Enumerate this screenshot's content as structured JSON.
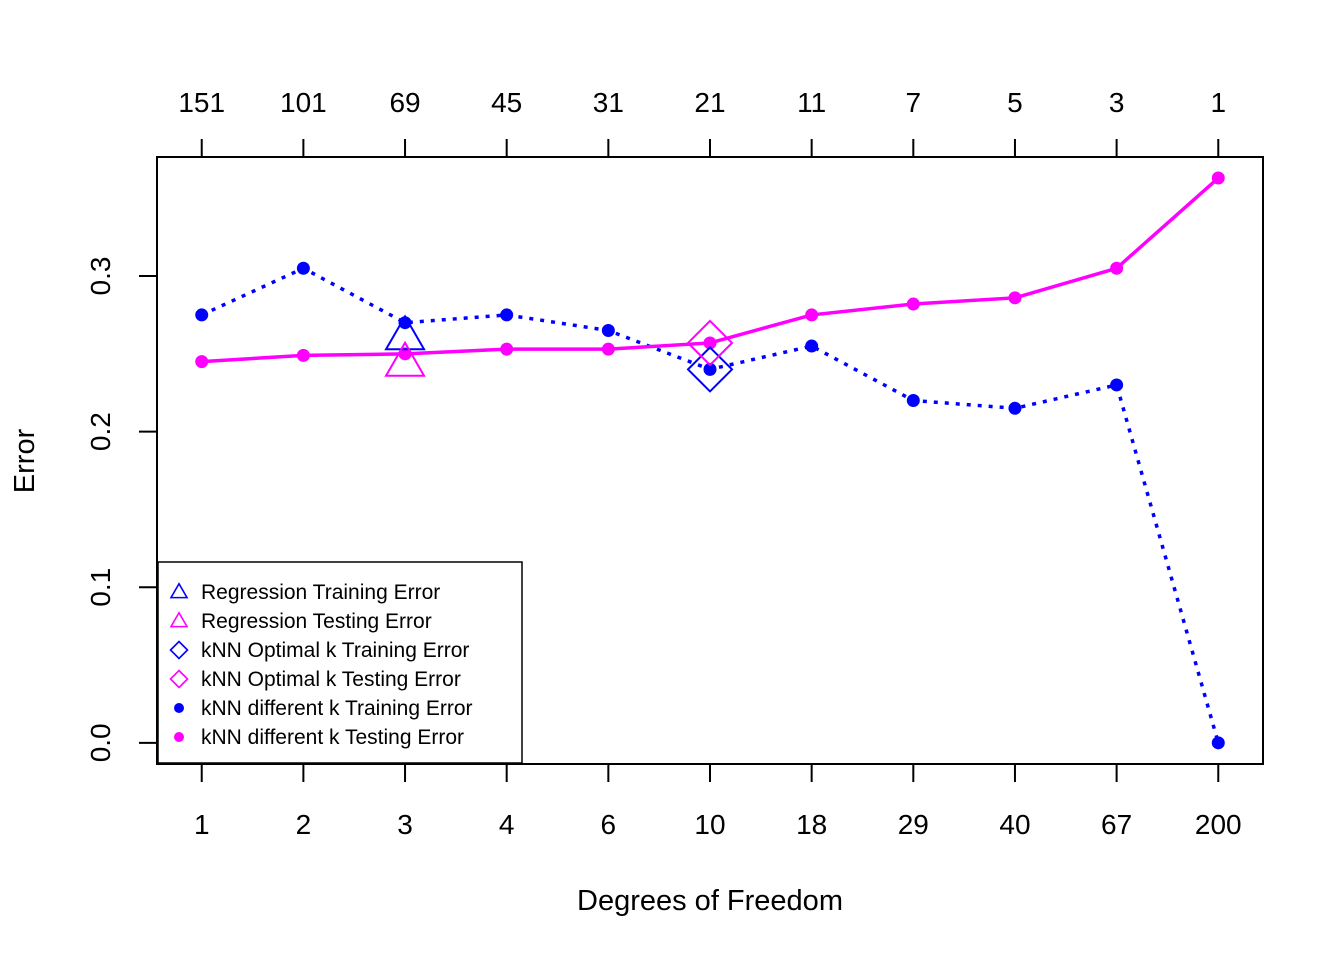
{
  "chart_data": {
    "type": "line",
    "xlabel": "Degrees of Freedom",
    "ylabel": "Error",
    "ylim": [
      -0.0136,
      0.3765
    ],
    "xlim": [
      0.56,
      11.44
    ],
    "grid": false,
    "legend_position": "bottom-left",
    "x_categories": [
      "1",
      "2",
      "3",
      "4",
      "6",
      "10",
      "18",
      "29",
      "40",
      "67",
      "200"
    ],
    "top_tick_labels": [
      "151",
      "101",
      "69",
      "45",
      "31",
      "21",
      "11",
      "7",
      "5",
      "3",
      "1"
    ],
    "y_ticks": [
      "0.0",
      "0.1",
      "0.2",
      "0.3"
    ],
    "y_tick_values": [
      0.0,
      0.1,
      0.2,
      0.3
    ],
    "colors": {
      "training": "#0000ff",
      "testing": "#ff00ff"
    },
    "series": [
      {
        "name": "kNN different k Training Error",
        "style": "dotted",
        "marker": "filled-circle",
        "color": "#0000ff",
        "values": [
          0.275,
          0.305,
          0.27,
          0.275,
          0.265,
          0.24,
          0.255,
          0.22,
          0.215,
          0.23,
          0.0
        ]
      },
      {
        "name": "kNN different k Testing Error",
        "style": "solid",
        "marker": "filled-circle",
        "color": "#ff00ff",
        "values": [
          0.245,
          0.249,
          0.25,
          0.253,
          0.253,
          0.257,
          0.275,
          0.282,
          0.286,
          0.305,
          0.363
        ]
      }
    ],
    "highlight_points": [
      {
        "name": "Regression Training Error",
        "marker": "triangle",
        "color": "#0000ff",
        "x_index": 3,
        "y": 0.26
      },
      {
        "name": "Regression Testing Error",
        "marker": "triangle",
        "color": "#ff00ff",
        "x_index": 3,
        "y": 0.243
      },
      {
        "name": "kNN Optimal k Training Error",
        "marker": "diamond",
        "color": "#0000ff",
        "x_index": 6,
        "y": 0.24
      },
      {
        "name": "kNN Optimal k Testing Error",
        "marker": "diamond",
        "color": "#ff00ff",
        "x_index": 6,
        "y": 0.257
      }
    ],
    "legend": [
      {
        "label": "Regression Training Error",
        "marker": "triangle",
        "color": "#0000ff"
      },
      {
        "label": "Regression Testing Error",
        "marker": "triangle",
        "color": "#ff00ff"
      },
      {
        "label": "kNN Optimal k Training Error",
        "marker": "diamond",
        "color": "#0000ff"
      },
      {
        "label": "kNN Optimal k Testing Error",
        "marker": "diamond",
        "color": "#ff00ff"
      },
      {
        "label": "kNN different k Training Error",
        "marker": "filled-circle",
        "color": "#0000ff"
      },
      {
        "label": "kNN different k Testing Error",
        "marker": "filled-circle",
        "color": "#ff00ff"
      }
    ]
  }
}
